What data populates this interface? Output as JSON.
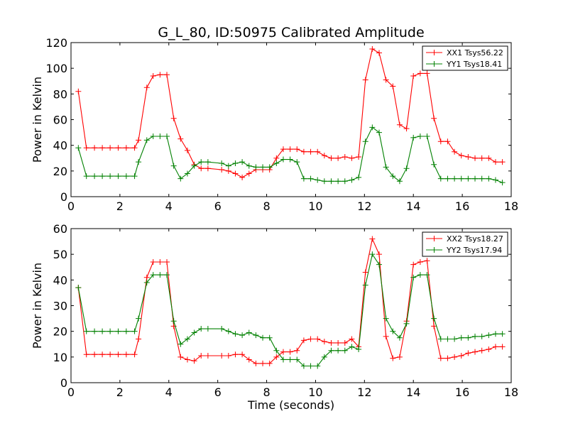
{
  "title": "G_L_80, ID:50975 Calibrated Amplitude",
  "chart_data": [
    {
      "type": "line",
      "ylabel": "Power in Kelvin",
      "xlabel": "",
      "xlim": [
        0,
        18
      ],
      "ylim": [
        0,
        120
      ],
      "xticks": [
        0,
        2,
        4,
        6,
        8,
        10,
        12,
        14,
        16,
        18
      ],
      "yticks": [
        0,
        20,
        40,
        60,
        80,
        100,
        120
      ],
      "grid": false,
      "legend_position": "top-right",
      "x": [
        0.3,
        0.63,
        0.96,
        1.28,
        1.6,
        1.93,
        2.26,
        2.6,
        2.76,
        3.1,
        3.36,
        3.64,
        3.92,
        4.2,
        4.48,
        4.76,
        5.04,
        5.32,
        5.6,
        6.16,
        6.44,
        6.72,
        7.0,
        7.28,
        7.56,
        7.84,
        8.12,
        8.4,
        8.68,
        8.96,
        9.24,
        9.52,
        9.8,
        10.08,
        10.36,
        10.64,
        10.92,
        11.2,
        11.48,
        11.76,
        12.04,
        12.32,
        12.6,
        12.88,
        13.16,
        13.44,
        13.72,
        14.0,
        14.28,
        14.56,
        14.84,
        15.12,
        15.4,
        15.68,
        15.96,
        16.24,
        16.52,
        16.8,
        17.08,
        17.36,
        17.64
      ],
      "series": [
        {
          "name": "XX1 Tsys56.22",
          "color": "#ff0000",
          "values": [
            82,
            38,
            38,
            38,
            38,
            38,
            38,
            38,
            44,
            85,
            94,
            95,
            95,
            61,
            45,
            36,
            25,
            22,
            22,
            21,
            20,
            18,
            15,
            18,
            21,
            21,
            21,
            30,
            37,
            37,
            37,
            35,
            35,
            35,
            32,
            30,
            30,
            31,
            30,
            31,
            91,
            115,
            112,
            91,
            86,
            56,
            53,
            94,
            96,
            96,
            61,
            43,
            43,
            35,
            32,
            31,
            30,
            30,
            30,
            27,
            27
          ]
        },
        {
          "name": "YY1 Tsys18.41",
          "color": "#008000",
          "values": [
            38,
            16,
            16,
            16,
            16,
            16,
            16,
            16,
            27,
            44,
            47,
            47,
            47,
            24,
            14,
            18,
            24,
            27,
            27,
            26,
            24,
            26,
            27,
            24,
            23,
            23,
            23,
            26,
            29,
            29,
            27,
            14,
            14,
            13,
            12,
            12,
            12,
            12,
            13,
            15,
            43,
            54,
            50,
            23,
            16,
            12,
            22,
            46,
            47,
            47,
            25,
            14,
            14,
            14,
            14,
            14,
            14,
            14,
            14,
            13,
            11
          ]
        }
      ]
    },
    {
      "type": "line",
      "ylabel": "Power in Kelvin",
      "xlabel": "Time (seconds)",
      "xlim": [
        0,
        18
      ],
      "ylim": [
        0,
        60
      ],
      "xticks": [
        0,
        2,
        4,
        6,
        8,
        10,
        12,
        14,
        16,
        18
      ],
      "yticks": [
        0,
        10,
        20,
        30,
        40,
        50,
        60
      ],
      "grid": false,
      "legend_position": "top-right",
      "x": [
        0.3,
        0.63,
        0.96,
        1.28,
        1.6,
        1.93,
        2.26,
        2.6,
        2.76,
        3.1,
        3.36,
        3.64,
        3.92,
        4.2,
        4.48,
        4.76,
        5.04,
        5.32,
        5.6,
        6.16,
        6.44,
        6.72,
        7.0,
        7.28,
        7.56,
        7.84,
        8.12,
        8.4,
        8.68,
        8.96,
        9.24,
        9.52,
        9.8,
        10.08,
        10.36,
        10.64,
        10.92,
        11.2,
        11.48,
        11.76,
        12.04,
        12.32,
        12.6,
        12.88,
        13.16,
        13.44,
        13.72,
        14.0,
        14.28,
        14.56,
        14.84,
        15.12,
        15.4,
        15.68,
        15.96,
        16.24,
        16.52,
        16.8,
        17.08,
        17.36,
        17.64
      ],
      "series": [
        {
          "name": "XX2 Tsys18.27",
          "color": "#ff0000",
          "values": [
            37,
            11,
            11,
            11,
            11,
            11,
            11,
            11,
            17,
            41,
            47,
            47,
            47,
            22,
            10,
            9,
            8.5,
            10.5,
            10.5,
            10.5,
            10.5,
            11,
            11,
            9,
            7.5,
            7.5,
            7.5,
            10,
            12,
            12,
            12.5,
            16.5,
            17,
            17,
            16,
            15.5,
            15.5,
            15.5,
            17,
            14,
            43,
            56,
            50,
            18,
            9.5,
            10,
            24,
            46,
            47,
            47.5,
            22,
            9.5,
            9.5,
            10,
            10.5,
            11.5,
            12,
            12.5,
            13,
            14,
            14
          ]
        },
        {
          "name": "YY2 Tsys17.94",
          "color": "#008000",
          "values": [
            37,
            20,
            20,
            20,
            20,
            20,
            20,
            20,
            25,
            39,
            42,
            42,
            42,
            24,
            15,
            17,
            19.5,
            21,
            21,
            21,
            20,
            19,
            18.5,
            19.5,
            18.5,
            17.5,
            17.5,
            12.5,
            9,
            9,
            9,
            6.5,
            6.5,
            6.5,
            10,
            12.5,
            12.5,
            12.5,
            14,
            13,
            38,
            50,
            46,
            25,
            20,
            17.5,
            23,
            41,
            42,
            42,
            25,
            17,
            17,
            17,
            17.5,
            17.5,
            18,
            18,
            18.5,
            19,
            19
          ]
        }
      ]
    }
  ]
}
